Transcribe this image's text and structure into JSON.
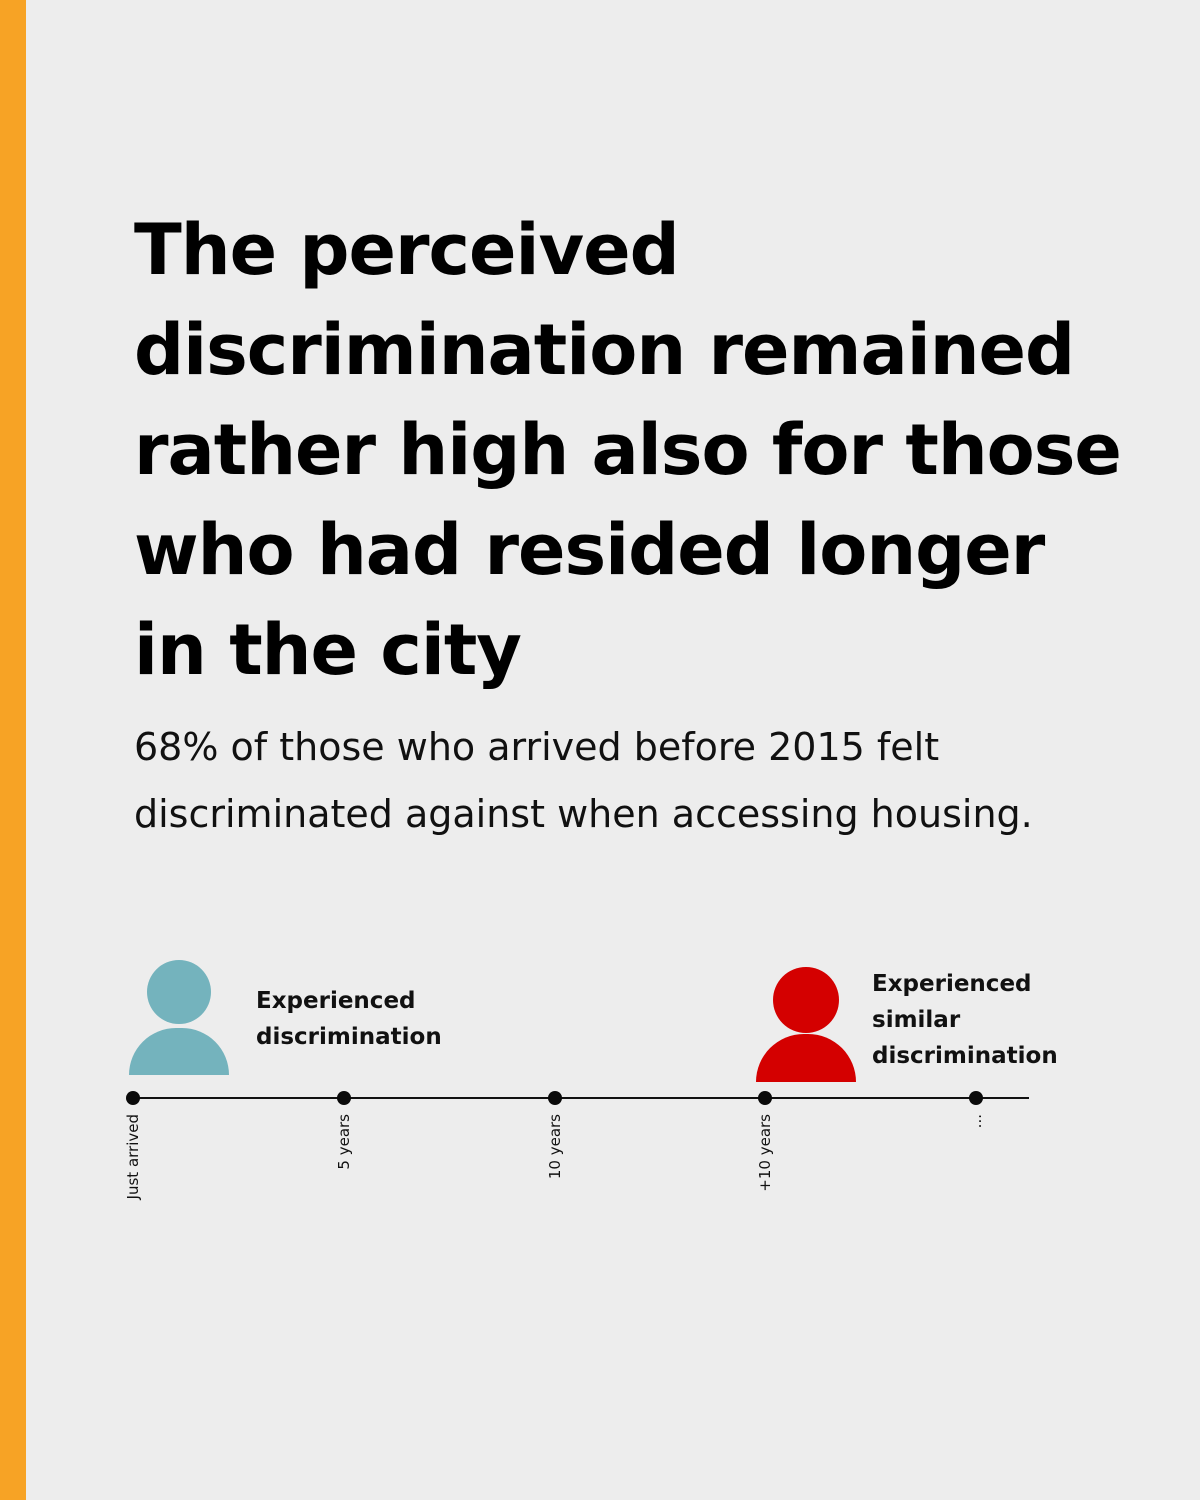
{
  "headline": "The perceived discrimination remained rather high also for those who had resided longer in the city",
  "subtitle": "68% of those who arrived before 2015 felt discriminated against when accessing housing.",
  "figures": [
    {
      "label": "Experienced discrimination",
      "color": "#74b3bd",
      "icon": "person-icon"
    },
    {
      "label": "Experienced similar discrimination",
      "color": "#d40000",
      "icon": "person-icon"
    }
  ],
  "timeline": {
    "points": [
      "Just arrived",
      "5 years",
      "10 years",
      "+10 years",
      "..."
    ]
  },
  "colors": {
    "accent": "#f7a325",
    "background": "#ededed",
    "teal": "#74b3bd",
    "red": "#d40000"
  }
}
